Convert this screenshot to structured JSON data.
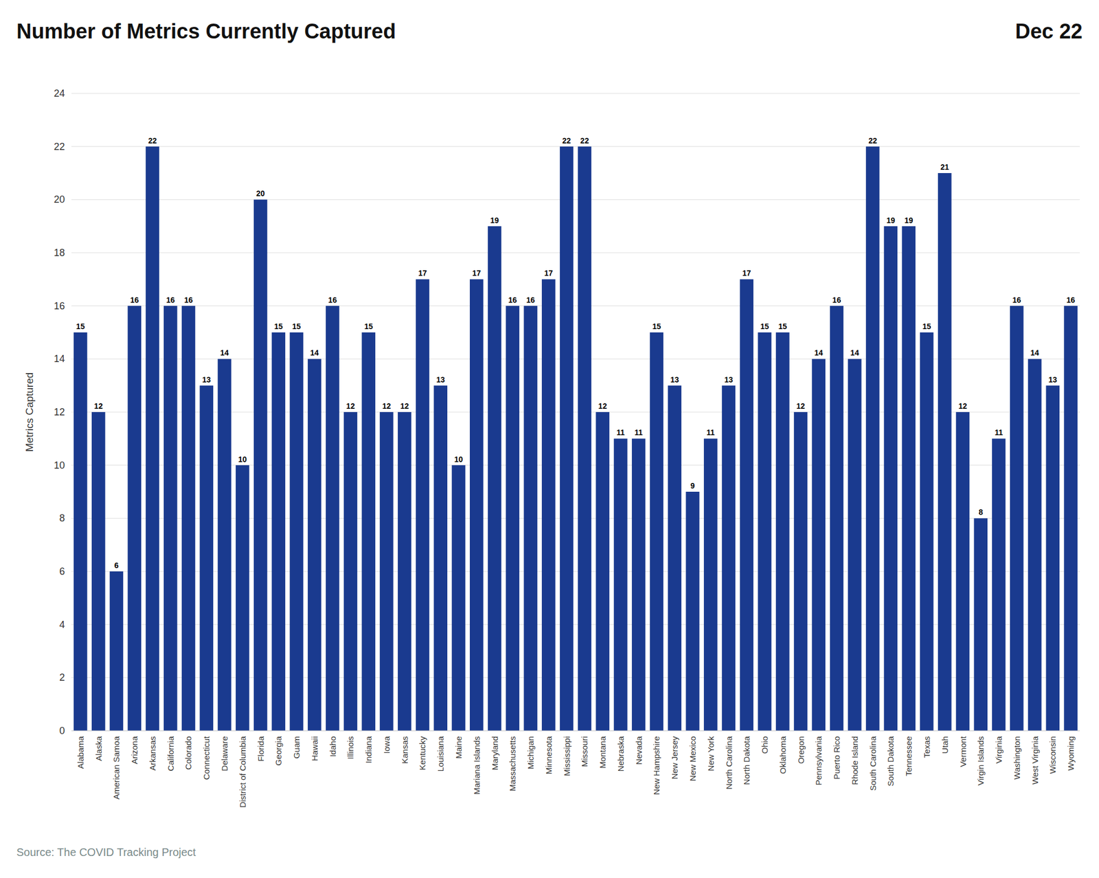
{
  "chart_data": {
    "type": "bar",
    "title": "Number of Metrics Currently Captured",
    "subtitle": "Dec 22",
    "ylabel": "Metrics Captured",
    "annotations": [
      "Source: The COVID Tracking Project"
    ],
    "color": "#1a3a8f",
    "categories": [
      "Alabama",
      "Alaska",
      "American Samoa",
      "Arizona",
      "Arkansas",
      "California",
      "Colorado",
      "Connecticut",
      "Delaware",
      "District of Columbia",
      "Florida",
      "Georgia",
      "Guam",
      "Hawaii",
      "Idaho",
      "Illinois",
      "Indiana",
      "Iowa",
      "Kansas",
      "Kentucky",
      "Louisiana",
      "Maine",
      "Mariana Islands",
      "Maryland",
      "Massachusetts",
      "Michigan",
      "Minnesota",
      "Mississippi",
      "Missouri",
      "Montana",
      "Nebraska",
      "Nevada",
      "New Hampshire",
      "New Jersey",
      "New Mexico",
      "New York",
      "North Carolina",
      "North Dakota",
      "Ohio",
      "Oklahoma",
      "Oregon",
      "Pennsylvania",
      "Puerto Rico",
      "Rhode Island",
      "South Carolina",
      "South Dakota",
      "Tennessee",
      "Texas",
      "Utah",
      "Vermont",
      "Virgin Islands",
      "Virginia",
      "Washington",
      "West Virginia",
      "Wisconsin",
      "Wyoming"
    ],
    "values": [
      15,
      12,
      6,
      16,
      22,
      16,
      16,
      13,
      14,
      10,
      20,
      15,
      15,
      14,
      16,
      12,
      15,
      12,
      12,
      17,
      13,
      10,
      17,
      19,
      16,
      16,
      17,
      22,
      22,
      12,
      11,
      11,
      15,
      13,
      9,
      11,
      13,
      17,
      15,
      15,
      12,
      14,
      16,
      14,
      22,
      19,
      19,
      15,
      21,
      12,
      8,
      11,
      16,
      14,
      13,
      16
    ],
    "ylim": [
      0,
      24
    ],
    "yticks": [
      0,
      2,
      4,
      6,
      8,
      10,
      12,
      14,
      16,
      18,
      20,
      22,
      24
    ],
    "grid": true,
    "data_labels": true
  }
}
